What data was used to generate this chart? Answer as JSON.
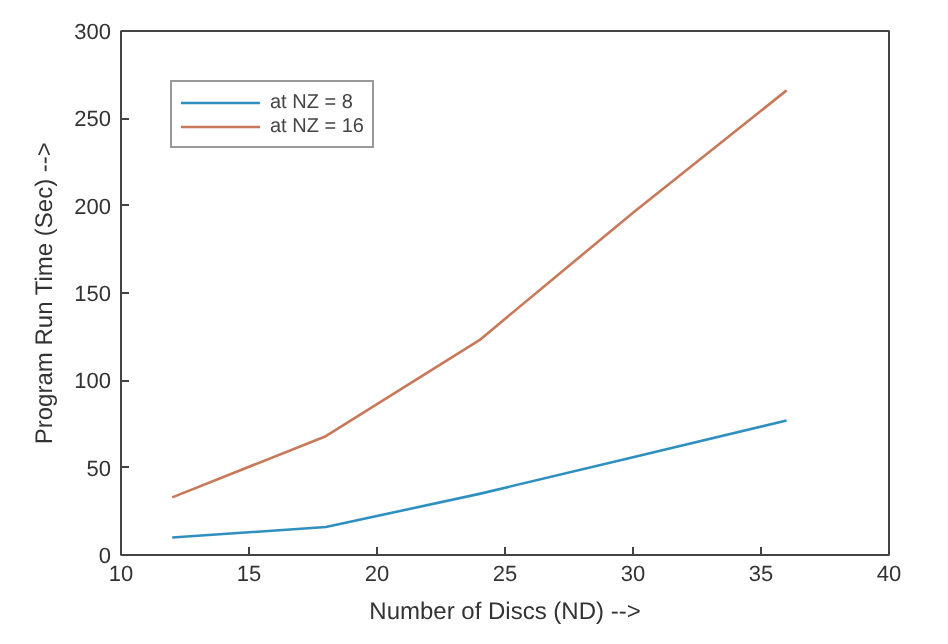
{
  "chart_data": {
    "type": "line",
    "xlabel": "Number of Discs (ND) -->",
    "ylabel": "Program Run Time (Sec) -->",
    "x": [
      12,
      18,
      24,
      30,
      36
    ],
    "series": [
      {
        "name": "at NZ = 8",
        "color": "#2f8fbf",
        "values": [
          10,
          16,
          35,
          56,
          77
        ]
      },
      {
        "name": "at NZ = 16",
        "color": "#c8795a",
        "values": [
          33,
          68,
          123,
          196,
          266
        ]
      }
    ],
    "xlim": [
      10,
      40
    ],
    "xticks": [
      10,
      15,
      20,
      25,
      30,
      35,
      40
    ],
    "ylim": [
      0,
      300
    ],
    "yticks": [
      0,
      50,
      100,
      150,
      200,
      250,
      300
    ],
    "grid": false,
    "legend": "top left"
  }
}
